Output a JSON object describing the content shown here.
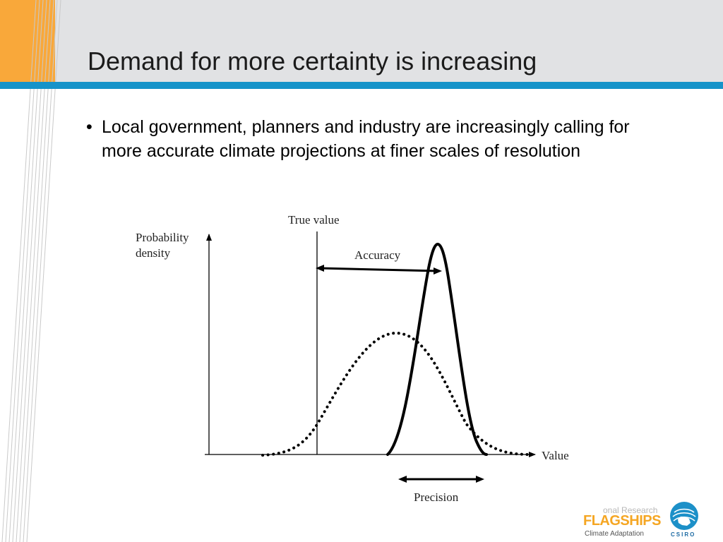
{
  "slide": {
    "title": "Demand for more certainty is increasing",
    "bullet_marker": "•",
    "bullet_text": "Local government, planners and industry are increasingly calling for more accurate climate projections at finer scales of resolution"
  },
  "diagram": {
    "y_axis_label_line1": "Probability",
    "y_axis_label_line2": "density",
    "x_axis_label": "Value",
    "true_value_label": "True value",
    "accuracy_label": "Accuracy",
    "precision_label": "Precision",
    "curves": [
      {
        "style": "dotted",
        "shape": "wide bell"
      },
      {
        "style": "solid",
        "shape": "narrow bell"
      }
    ]
  },
  "logo": {
    "line1": "onal Research",
    "line2": "FLAGSHIPS",
    "line3": "Climate Adaptation",
    "org": "CSIRO"
  },
  "colors": {
    "header_background": "#e1e2e4",
    "accent_bar": "#1693c9",
    "corner_orange": "#f9a83a",
    "flagships_orange": "#f5a623",
    "csiro_blue": "#1c6aa3"
  }
}
